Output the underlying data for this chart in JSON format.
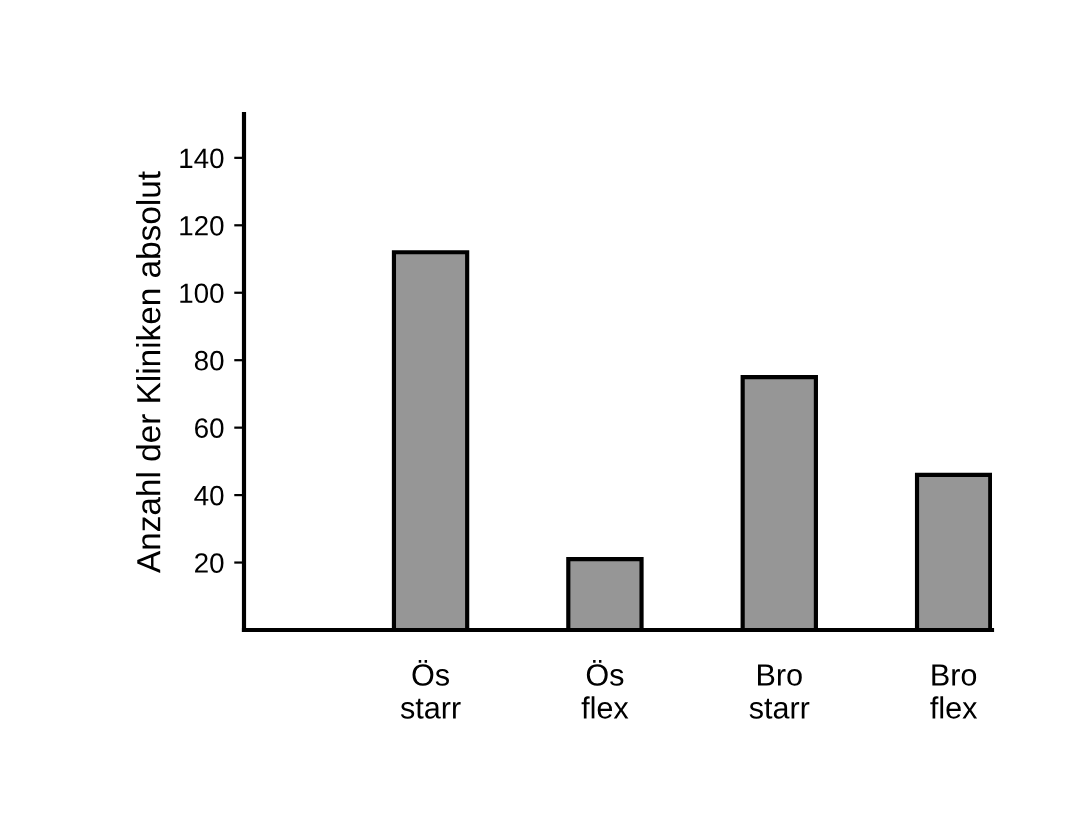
{
  "chart_data": {
    "type": "bar",
    "ylabel": "Anzahl der Kliniken absolut",
    "categories": [
      "Ös\nstarr",
      "Ös\nflex",
      "Bro\nstarr",
      "Bro\nflex"
    ],
    "values": [
      112,
      21,
      75,
      46
    ],
    "color": "#969696",
    "ylim": [
      0,
      153
    ],
    "yticks": [
      20,
      40,
      60,
      80,
      100,
      120,
      140
    ],
    "grid": false
  }
}
